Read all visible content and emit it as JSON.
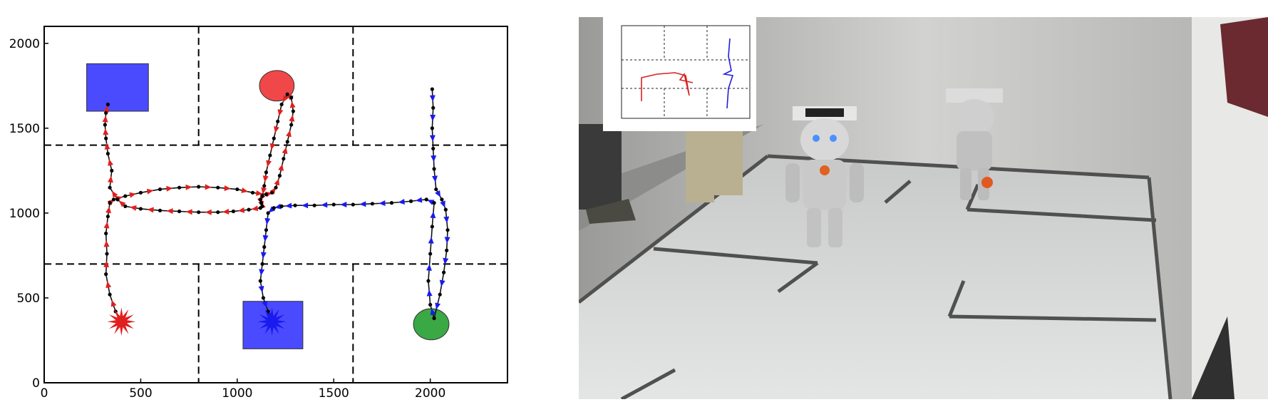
{
  "chart_data": {
    "type": "scatter",
    "title": "",
    "xlabel": "",
    "ylabel": "",
    "xlim": [
      0,
      2400
    ],
    "ylim": [
      0,
      2100
    ],
    "xticks": [
      0,
      500,
      1000,
      1500,
      2000
    ],
    "yticks": [
      0,
      500,
      1000,
      1500,
      2000
    ],
    "grid": false,
    "dividers": {
      "horizontal": [
        1400,
        700
      ],
      "vertical_top": [
        800,
        1600
      ],
      "vertical_bottom": [
        800,
        1600
      ]
    },
    "regions": [
      {
        "shape": "rect",
        "x": [
          220,
          540
        ],
        "y": [
          1600,
          1880
        ],
        "color": "#4a4aff"
      },
      {
        "shape": "rect",
        "x": [
          1030,
          1340
        ],
        "y": [
          200,
          480
        ],
        "color": "#4a4aff"
      },
      {
        "shape": "ellipse",
        "cx": 1205,
        "cy": 1750,
        "rx": 90,
        "ry": 90,
        "color": "#f04848"
      },
      {
        "shape": "ellipse",
        "cx": 2005,
        "cy": 345,
        "rx": 92,
        "ry": 92,
        "color": "#3aa845"
      }
    ],
    "series": [
      {
        "color": "#e0201e",
        "start": [
          400,
          360
        ],
        "x": [
          400,
          370,
          340,
          320,
          325,
          320,
          330,
          340,
          360,
          420,
          500,
          600,
          700,
          800,
          900,
          1000,
          1080,
          1150,
          1180,
          1200,
          1220,
          1240,
          1260,
          1280,
          1290,
          1280,
          1260,
          1230,
          1210,
          1190,
          1170,
          1150,
          1140,
          1130,
          1120,
          1125,
          1130,
          1120,
          1060,
          980,
          900,
          800,
          700,
          600,
          500,
          420,
          380,
          340,
          350,
          330,
          320,
          315,
          320,
          330
        ],
        "y": [
          360,
          420,
          520,
          640,
          760,
          880,
          980,
          1060,
          1080,
          1100,
          1120,
          1140,
          1150,
          1155,
          1150,
          1140,
          1120,
          1110,
          1120,
          1150,
          1220,
          1320,
          1420,
          1520,
          1600,
          1680,
          1700,
          1640,
          1540,
          1440,
          1340,
          1240,
          1160,
          1100,
          1080,
          1060,
          1040,
          1030,
          1020,
          1010,
          1005,
          1005,
          1010,
          1015,
          1025,
          1040,
          1080,
          1150,
          1250,
          1350,
          1440,
          1520,
          1590,
          1640
        ]
      },
      {
        "color": "#1a1aee",
        "start": [
          1180,
          360
        ],
        "x": [
          2010,
          2015,
          2010,
          2015,
          2020,
          2030,
          2060,
          2080,
          2090,
          2085,
          2070,
          2050,
          2020,
          2000,
          1990,
          2000,
          2010,
          2020,
          1980,
          1900,
          1800,
          1700,
          1600,
          1500,
          1400,
          1300,
          1230,
          1190,
          1160,
          1150,
          1140,
          1130,
          1120,
          1135,
          1160,
          1180
        ],
        "y": [
          1730,
          1620,
          1500,
          1380,
          1260,
          1140,
          1080,
          1020,
          900,
          780,
          650,
          520,
          380,
          460,
          600,
          760,
          920,
          1060,
          1080,
          1070,
          1060,
          1055,
          1050,
          1050,
          1045,
          1045,
          1040,
          1030,
          1000,
          900,
          800,
          700,
          600,
          500,
          420,
          360
        ]
      }
    ]
  }
}
